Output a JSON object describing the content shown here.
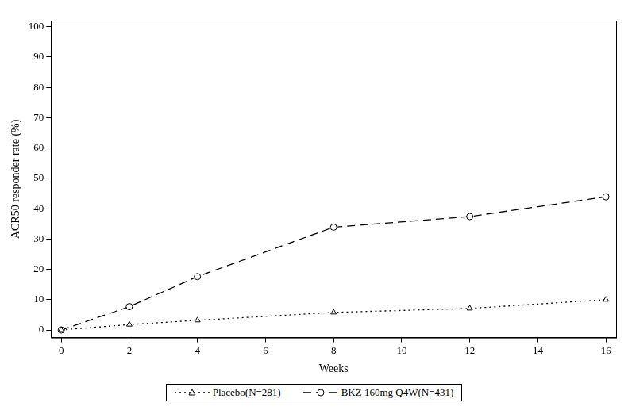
{
  "chart_data": {
    "type": "line",
    "x_label": "Weeks",
    "y_label": "ACR50 responder rate (%)",
    "x": [
      0,
      2,
      4,
      8,
      12,
      16
    ],
    "series": [
      {
        "name": "Placebo(N=281)",
        "color": "#000000",
        "marker": "triangle",
        "line_style": "dotted",
        "values": [
          0,
          1.8,
          3.2,
          5.8,
          7.1,
          10.0
        ]
      },
      {
        "name": "BKZ 160mg Q4W(N=431)",
        "color": "#000000",
        "marker": "circle",
        "line_style": "dashed",
        "values": [
          0,
          7.7,
          17.6,
          33.9,
          37.4,
          43.9
        ]
      }
    ],
    "xlim": [
      -0.3,
      16.3
    ],
    "ylim": [
      -2.5,
      102
    ],
    "xticks": [
      0,
      2,
      4,
      6,
      8,
      10,
      12,
      14,
      16
    ],
    "yticks": [
      0,
      10,
      20,
      30,
      40,
      50,
      60,
      70,
      80,
      90,
      100
    ],
    "grid": false,
    "legend": "bottom"
  }
}
